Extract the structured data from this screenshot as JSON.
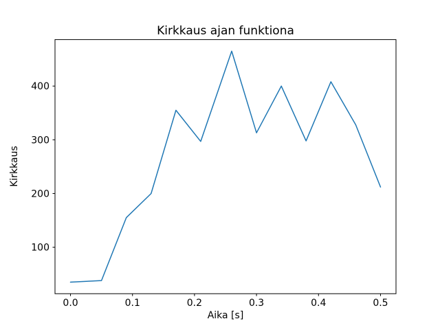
{
  "chart_data": {
    "type": "line",
    "title": "Kirkkaus ajan funktiona",
    "xlabel": "Aika [s]",
    "ylabel": "Kirkkaus",
    "x": [
      0.0,
      0.05,
      0.09,
      0.13,
      0.17,
      0.21,
      0.26,
      0.3,
      0.34,
      0.38,
      0.42,
      0.46,
      0.5
    ],
    "values": [
      35,
      38,
      155,
      200,
      355,
      297,
      465,
      313,
      400,
      298,
      408,
      328,
      212
    ],
    "xlim": [
      -0.025,
      0.525
    ],
    "ylim": [
      13.5,
      486.5
    ],
    "xticks": [
      0.0,
      0.1,
      0.2,
      0.3,
      0.4,
      0.5
    ],
    "xtick_labels": [
      "0.0",
      "0.1",
      "0.2",
      "0.3",
      "0.4",
      "0.5"
    ],
    "yticks": [
      100,
      200,
      300,
      400
    ],
    "ytick_labels": [
      "100",
      "200",
      "300",
      "400"
    ],
    "line_color": "#1f77b4",
    "spine_color": "#000000",
    "background_color": "#ffffff",
    "grid": false,
    "legend_position": "none"
  }
}
